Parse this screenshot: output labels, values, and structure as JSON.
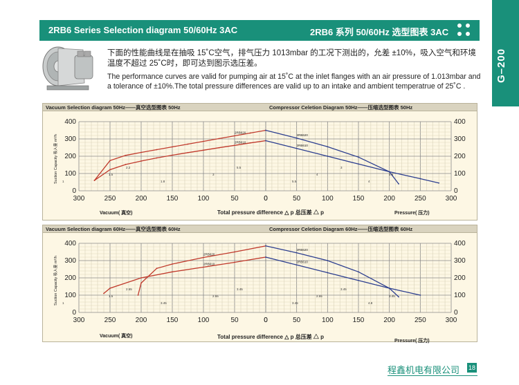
{
  "header": {
    "left_title": "2RB6 Series Selection diagram 50/60Hz 3AC",
    "right_title": "2RB6 系列 50/60Hz 选型图表 3AC"
  },
  "side_tab": {
    "label": "G–200"
  },
  "intro": {
    "cn": "下面的性能曲线是在抽吸 15˚C空气，排气压力 1013mbar 的工况下测出的，允差 ±10%，吸入空气和环境温度不超过 25˚C时，即可达到图示选压差。",
    "en": "The performance curves are valid for pumping air at 15˚C at the inlet flanges with an air pressure of 1.013mbar and a tolerance of ±10%.The total pressure differences are valid up to an intake and ambient temperatrue of 25˚C ."
  },
  "footer": {
    "company": "程鑫机电有限公司",
    "page": "18"
  },
  "colors": {
    "accent": "#19907a",
    "red_curve": "#c0392b",
    "blue_curve": "#2c3e8f",
    "panel_bg": "#fdf7e4"
  },
  "chart_data": [
    {
      "type": "line",
      "panel_title_left": "Vacuum Selection diagram 50Hz——真空选型图表 50Hz",
      "panel_title_right": "Compressor Celetion Diagram 50Hz——压缩选型图表 50Hz",
      "ylabel_left": "Suction Capacity 吸入量 m³/h",
      "xlabel_left": "Vacuum( 真空)",
      "xlabel_center": "Total pressure difference △ p 总压差 △ p",
      "xlabel_right": "Pressure( 压力)",
      "y_ticks": [
        "400",
        "300",
        "200",
        "100",
        "0"
      ],
      "x_ticks_left": [
        "300",
        "250",
        "200",
        "150",
        "100",
        "50",
        "0"
      ],
      "x_ticks_right": [
        "0",
        "50",
        "100",
        "150",
        "200",
        "250",
        "300"
      ],
      "ylim": [
        0,
        400
      ],
      "series": [
        {
          "side": "vacuum",
          "name": "2RB620",
          "x": [
            0,
            25,
            50,
            75,
            100,
            125,
            150,
            175,
            200,
            225,
            250,
            275
          ],
          "y": [
            350,
            334,
            318,
            302,
            286,
            270,
            254,
            238,
            222,
            205,
            175,
            60
          ]
        },
        {
          "side": "vacuum",
          "name": "2RB610",
          "x": [
            0,
            25,
            50,
            75,
            100,
            125,
            150,
            175,
            200,
            225,
            250,
            275
          ],
          "y": [
            290,
            277,
            263,
            249,
            235,
            221,
            206,
            190,
            172,
            152,
            122,
            60
          ]
        },
        {
          "side": "compressor",
          "name": "2RB620",
          "x": [
            0,
            50,
            100,
            150,
            200,
            215
          ],
          "y": [
            350,
            305,
            255,
            195,
            110,
            40
          ]
        },
        {
          "side": "compressor",
          "name": "2RB610",
          "x": [
            0,
            50,
            100,
            150,
            200,
            250,
            280
          ],
          "y": [
            290,
            245,
            200,
            155,
            110,
            70,
            45
          ]
        }
      ],
      "point_labels": [
        "1",
        "1.5",
        "2.2",
        "1.8",
        "3",
        "5.5",
        "5.5",
        "4",
        "3",
        "4",
        "5.5"
      ]
    },
    {
      "type": "line",
      "panel_title_left": "Vacuum Selection diagram 60Hz——真空选型图表 60Hz",
      "panel_title_right": "Compressor Celetion Diagram 60Hz——压缩选型图表 60Hz",
      "ylabel_left": "Suction Capacity 吸入量 m³/h",
      "xlabel_left": "Vacuum( 真空)",
      "xlabel_center": "Total pressure difference △ p 总压差 △ p",
      "xlabel_right": "Pressure( 压力)",
      "y_ticks": [
        "400",
        "300",
        "200",
        "100",
        "0"
      ],
      "x_ticks_left": [
        "300",
        "250",
        "200",
        "150",
        "100",
        "50",
        "0"
      ],
      "x_ticks_right": [
        "0",
        "50",
        "100",
        "150",
        "200",
        "250",
        "300"
      ],
      "ylim": [
        0,
        400
      ],
      "series": [
        {
          "side": "vacuum",
          "name": "2RB620",
          "x": [
            0,
            50,
            100,
            150,
            175,
            200,
            205
          ],
          "y": [
            385,
            350,
            318,
            280,
            255,
            170,
            100
          ]
        },
        {
          "side": "vacuum",
          "name": "2RB610",
          "x": [
            0,
            50,
            100,
            150,
            200,
            250,
            260
          ],
          "y": [
            320,
            290,
            262,
            235,
            200,
            140,
            110
          ]
        },
        {
          "side": "compressor",
          "name": "2RB620",
          "x": [
            0,
            50,
            100,
            150,
            200,
            215
          ],
          "y": [
            385,
            345,
            300,
            235,
            140,
            90
          ]
        },
        {
          "side": "compressor",
          "name": "2RB610",
          "x": [
            0,
            50,
            100,
            150,
            200,
            250
          ],
          "y": [
            320,
            275,
            230,
            185,
            140,
            100
          ]
        }
      ],
      "point_labels": [
        "1",
        "1.5",
        "2.55",
        "3.45",
        "2.55",
        "3.45",
        "3.45",
        "2.55",
        "3.45",
        "4.8",
        "3.45"
      ]
    }
  ]
}
